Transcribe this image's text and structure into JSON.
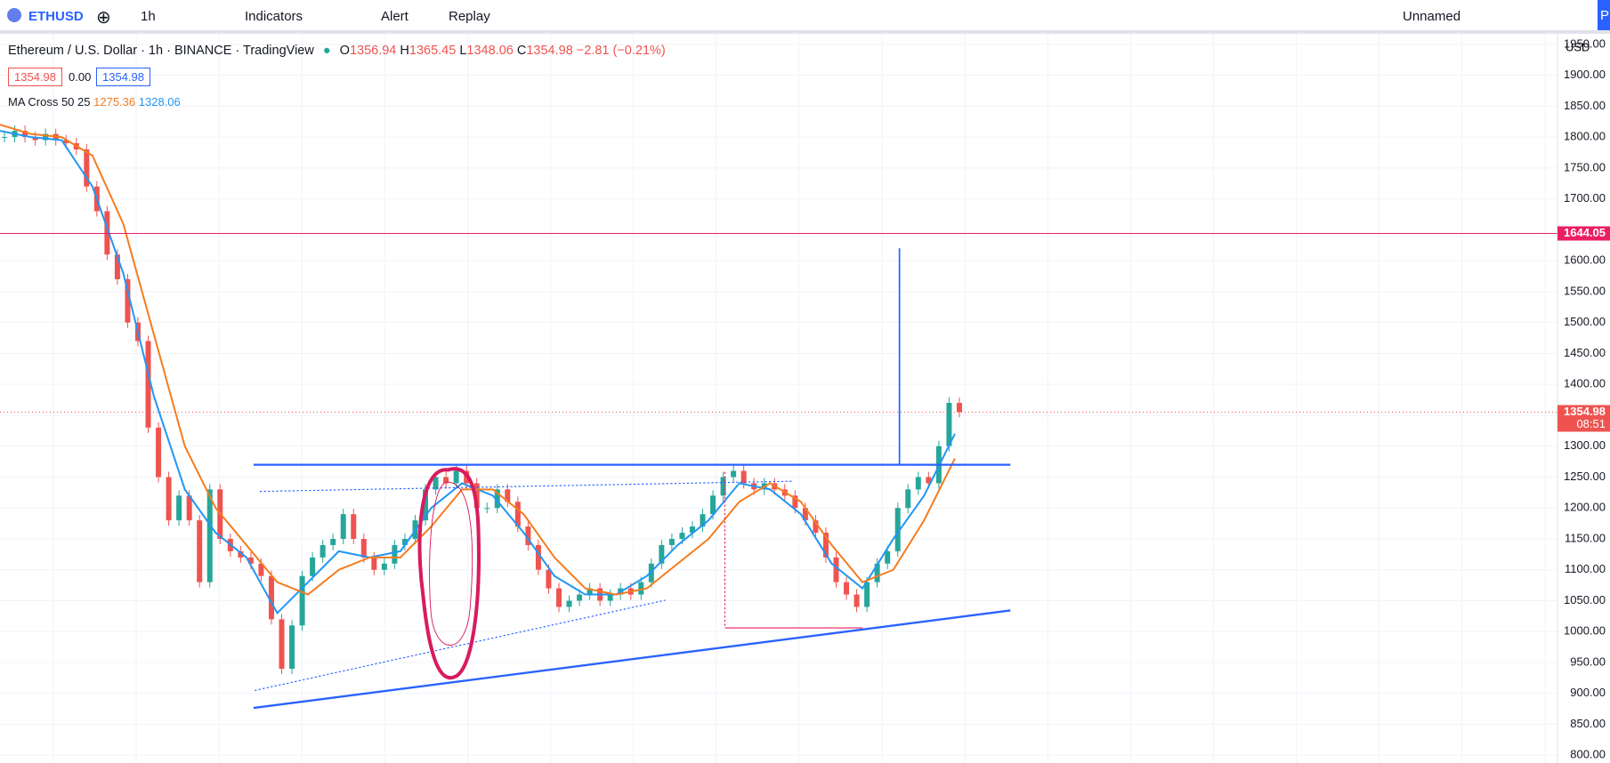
{
  "toolbar": {
    "symbol": "ETHUSD",
    "interval": "1h",
    "indicators": "Indicators",
    "alert": "Alert",
    "replay": "Replay",
    "layout_name": "Unnamed",
    "publish": "P"
  },
  "legend": {
    "title": "Ethereum / U.S. Dollar · 1h · BINANCE · TradingView",
    "open_label": "O",
    "open": "1356.94",
    "high_label": "H",
    "high": "1365.45",
    "low_label": "L",
    "low": "1348.06",
    "close_label": "C",
    "close": "1354.98",
    "change": "−2.81 (−0.21%)",
    "bid": "1354.98",
    "spread": "0.00",
    "ask": "1354.98",
    "indicator": "MA Cross 50 25",
    "ma_slow": "1275.36",
    "ma_fast": "1328.06"
  },
  "chart_data": {
    "type": "candlestick",
    "currency": "USD",
    "ylim": [
      787.5,
      1967
    ],
    "yticks": [
      {
        "value": 800,
        "label": "800.00"
      },
      {
        "value": 850,
        "label": "850.00"
      },
      {
        "value": 900,
        "label": "900.00"
      },
      {
        "value": 950,
        "label": "950.00"
      },
      {
        "value": 1000,
        "label": "1000.00"
      },
      {
        "value": 1050,
        "label": "1050.00"
      },
      {
        "value": 1100,
        "label": "1100.00"
      },
      {
        "value": 1150,
        "label": "1150.00"
      },
      {
        "value": 1200,
        "label": "1200.00"
      },
      {
        "value": 1250,
        "label": "1250.00"
      },
      {
        "value": 1300,
        "label": "1300.00"
      },
      {
        "value": 1350,
        "label": "1350.00"
      },
      {
        "value": 1400,
        "label": "1400.00"
      },
      {
        "value": 1450,
        "label": "1450.00"
      },
      {
        "value": 1500,
        "label": "1500.00"
      },
      {
        "value": 1550,
        "label": "1550.00"
      },
      {
        "value": 1600,
        "label": "1600.00"
      },
      {
        "value": 1700,
        "label": "1700.00"
      },
      {
        "value": 1750,
        "label": "1750.00"
      },
      {
        "value": 1800,
        "label": "1800.00"
      },
      {
        "value": 1850,
        "label": "1850.00"
      },
      {
        "value": 1900,
        "label": "1900.00"
      },
      {
        "value": 1950,
        "label": "1950.00"
      }
    ],
    "grid": true,
    "up_color": "#26a69a",
    "down_color": "#ef5350",
    "closes": [
      1800,
      1810,
      1800,
      1795,
      1805,
      1795,
      1790,
      1780,
      1720,
      1680,
      1610,
      1570,
      1500,
      1470,
      1330,
      1250,
      1180,
      1220,
      1180,
      1080,
      1230,
      1150,
      1130,
      1120,
      1110,
      1090,
      1020,
      940,
      1010,
      1090,
      1120,
      1140,
      1150,
      1190,
      1150,
      1120,
      1100,
      1110,
      1140,
      1150,
      1180,
      1230,
      1250,
      1240,
      1260,
      1240,
      1200,
      1200,
      1230,
      1210,
      1170,
      1140,
      1100,
      1070,
      1040,
      1050,
      1060,
      1070,
      1050,
      1060,
      1070,
      1060,
      1080,
      1110,
      1140,
      1150,
      1160,
      1170,
      1190,
      1220,
      1250,
      1260,
      1240,
      1230,
      1240,
      1230,
      1220,
      1200,
      1180,
      1160,
      1120,
      1080,
      1060,
      1040,
      1080,
      1110,
      1130,
      1200,
      1230,
      1250,
      1240,
      1300,
      1370,
      1355
    ],
    "series": [
      {
        "name": "MA 25",
        "color": "#2196f3",
        "values": [
          1810,
          1800,
          1795,
          1720,
          1580,
          1380,
          1230,
          1160,
          1120,
          1030,
          1080,
          1130,
          1120,
          1130,
          1200,
          1240,
          1220,
          1160,
          1090,
          1060,
          1060,
          1090,
          1140,
          1180,
          1240,
          1230,
          1190,
          1110,
          1070,
          1150,
          1220,
          1320
        ]
      },
      {
        "name": "MA 50",
        "color": "#f57c1f",
        "values": [
          1820,
          1805,
          1800,
          1770,
          1660,
          1480,
          1300,
          1200,
          1140,
          1080,
          1060,
          1100,
          1120,
          1120,
          1170,
          1230,
          1230,
          1190,
          1120,
          1070,
          1060,
          1070,
          1110,
          1150,
          1210,
          1240,
          1210,
          1140,
          1080,
          1100,
          1180,
          1280
        ]
      }
    ],
    "levels": [
      {
        "value": 1644.05,
        "label": "1644.05",
        "color": "#e91e63"
      },
      {
        "value": 1354.98,
        "label": "1354.98",
        "color": "#ef5350",
        "countdown": "08:51"
      }
    ]
  }
}
